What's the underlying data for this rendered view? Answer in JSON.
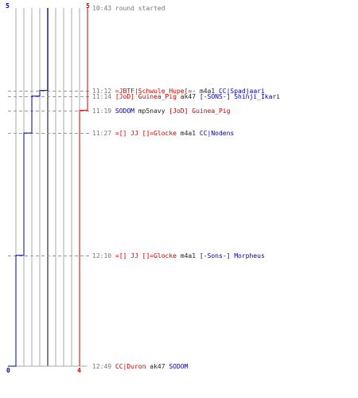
{
  "chart_data": {
    "type": "line",
    "series": [
      {
        "color": "#0000aa",
        "start": "5",
        "end": "0",
        "steps": [
          5,
          4,
          3,
          2,
          1,
          0
        ]
      },
      {
        "color": "#cc0000",
        "start": "5",
        "end": "4",
        "steps": [
          5,
          4
        ]
      }
    ],
    "events": [
      {
        "time": "10:43",
        "kind": "info",
        "text": "round started"
      },
      {
        "time": "11:12",
        "kind": "kill",
        "team": "red",
        "killer": "=JBTF|Schwule_Hupe[=-",
        "weapon": "m4a1",
        "victim": "CC|Spadjaari"
      },
      {
        "time": "11:14",
        "kind": "kill",
        "team": "red",
        "killer": "[JoD] Guinea_Pig",
        "weapon": "ak47",
        "victim": "[-SONS-] Shinji_Ikari"
      },
      {
        "time": "11:19",
        "kind": "kill",
        "team": "blue",
        "killer": "SODOM",
        "weapon": "mp5navy",
        "victim": "[JoD] Guinea_Pig"
      },
      {
        "time": "11:27",
        "kind": "kill",
        "team": "red",
        "killer": "=[] JJ []=Glocke",
        "weapon": "m4a1",
        "victim": "CC|Nodens"
      },
      {
        "time": "12:10",
        "kind": "kill",
        "team": "red",
        "killer": "=[] JJ []=Glocke",
        "weapon": "m4a1",
        "victim": "[-Sons-] Morpheus"
      },
      {
        "time": "12:49",
        "kind": "kill",
        "team": "red",
        "killer": "CC|Duron",
        "weapon": "ak47",
        "victim": "SODOM"
      }
    ],
    "colors": {
      "blue": "#0000aa",
      "red": "#cc0000",
      "text": "#222222",
      "info": "#777777",
      "grid": "#aaaaaa",
      "axis": "#555555"
    }
  }
}
